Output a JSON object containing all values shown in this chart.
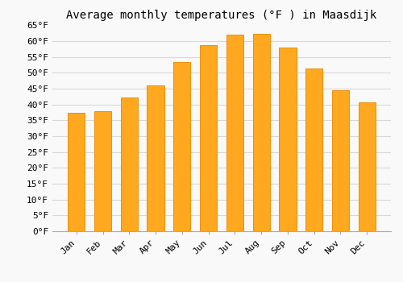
{
  "title": "Average monthly temperatures (°F ) in Maasdijk",
  "months": [
    "Jan",
    "Feb",
    "Mar",
    "Apr",
    "May",
    "Jun",
    "Jul",
    "Aug",
    "Sep",
    "Oct",
    "Nov",
    "Dec"
  ],
  "values": [
    37.5,
    37.8,
    42.2,
    46.0,
    53.4,
    58.8,
    62.2,
    62.4,
    58.0,
    51.4,
    44.6,
    40.6
  ],
  "bar_color": "#FFA820",
  "bar_edge_color": "#E8920A",
  "ylim": [
    0,
    65
  ],
  "yticks": [
    0,
    5,
    10,
    15,
    20,
    25,
    30,
    35,
    40,
    45,
    50,
    55,
    60,
    65
  ],
  "grid_color": "#d8d8d8",
  "background_color": "#f9f9f9",
  "title_fontsize": 10,
  "tick_fontsize": 8,
  "font_family": "monospace"
}
